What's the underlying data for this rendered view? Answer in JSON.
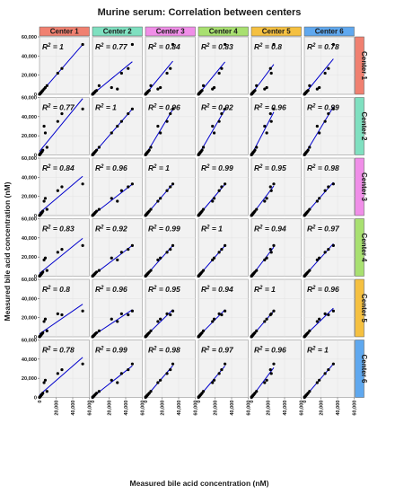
{
  "chart_data": {
    "type": "scatter",
    "title": "Murine serum: Correlation between centers",
    "xlabel": "Measured bile acid concentration (nM)",
    "ylabel": "Measured bile acid concentration (nM)",
    "xlim": [
      0,
      60000
    ],
    "ylim": [
      0,
      60000
    ],
    "x_ticks": [
      0,
      20000,
      40000,
      60000
    ],
    "x_tick_labels": [
      "0",
      "20,000",
      "40,000",
      "60,000"
    ],
    "y_ticks": [
      0,
      20000,
      40000,
      60000
    ],
    "y_tick_labels": [
      "0",
      "20,000",
      "40,000",
      "60,000"
    ],
    "grid": true,
    "point_color": "#000000",
    "line_color": "#0000cc",
    "column_strips": [
      {
        "label": "Center 1",
        "color": "#f08070"
      },
      {
        "label": "Center 2",
        "color": "#7fe0c0"
      },
      {
        "label": "Center 3",
        "color": "#f08ee8"
      },
      {
        "label": "Center 4",
        "color": "#a8e070"
      },
      {
        "label": "Center 5",
        "color": "#f5c040"
      },
      {
        "label": "Center 6",
        "color": "#5fa8ef"
      }
    ],
    "row_strips": [
      {
        "label": "Center 1",
        "color": "#f08070"
      },
      {
        "label": "Center 2",
        "color": "#7fe0c0"
      },
      {
        "label": "Center 3",
        "color": "#f08ee8"
      },
      {
        "label": "Center 4",
        "color": "#a8e070"
      },
      {
        "label": "Center 5",
        "color": "#f5c040"
      },
      {
        "label": "Center 6",
        "color": "#5fa8ef"
      }
    ],
    "r2_prefix": "R",
    "r2_exponent": "2",
    "r2_separator": " = ",
    "r2_matrix": [
      [
        "1",
        "0.77",
        "0.84",
        "0.83",
        "0.8",
        "0.78"
      ],
      [
        "0.77",
        "1",
        "0.96",
        "0.92",
        "0.96",
        "0.99"
      ],
      [
        "0.84",
        "0.96",
        "1",
        "0.99",
        "0.95",
        "0.98"
      ],
      [
        "0.83",
        "0.92",
        "0.99",
        "1",
        "0.94",
        "0.97"
      ],
      [
        "0.8",
        "0.96",
        "0.95",
        "0.94",
        "1",
        "0.96"
      ],
      [
        "0.78",
        "0.99",
        "0.98",
        "0.97",
        "0.96",
        "1"
      ]
    ],
    "center_values": [
      [
        50,
        150,
        300,
        500,
        800,
        1200,
        1800,
        2500,
        3200,
        4000,
        5500,
        7000,
        9000,
        22000,
        27000,
        52000
      ],
      [
        80,
        200,
        400,
        700,
        1000,
        1500,
        2200,
        3000,
        3600,
        5000,
        30000,
        23000,
        8000,
        35000,
        43000,
        48000
      ],
      [
        60,
        180,
        350,
        600,
        900,
        1300,
        2000,
        2700,
        3400,
        4600,
        15000,
        18000,
        6500,
        26000,
        30000,
        33000
      ],
      [
        70,
        160,
        320,
        550,
        850,
        1250,
        1900,
        2600,
        3300,
        4400,
        17000,
        19000,
        6000,
        25000,
        28000,
        32000
      ],
      [
        55,
        170,
        330,
        580,
        820,
        1220,
        1850,
        2550,
        3250,
        4300,
        16000,
        18500,
        6200,
        24000,
        23000,
        27000
      ],
      [
        65,
        190,
        360,
        620,
        880,
        1280,
        1950,
        2650,
        3350,
        4500,
        15500,
        18000,
        6300,
        25000,
        29000,
        35000
      ]
    ]
  }
}
